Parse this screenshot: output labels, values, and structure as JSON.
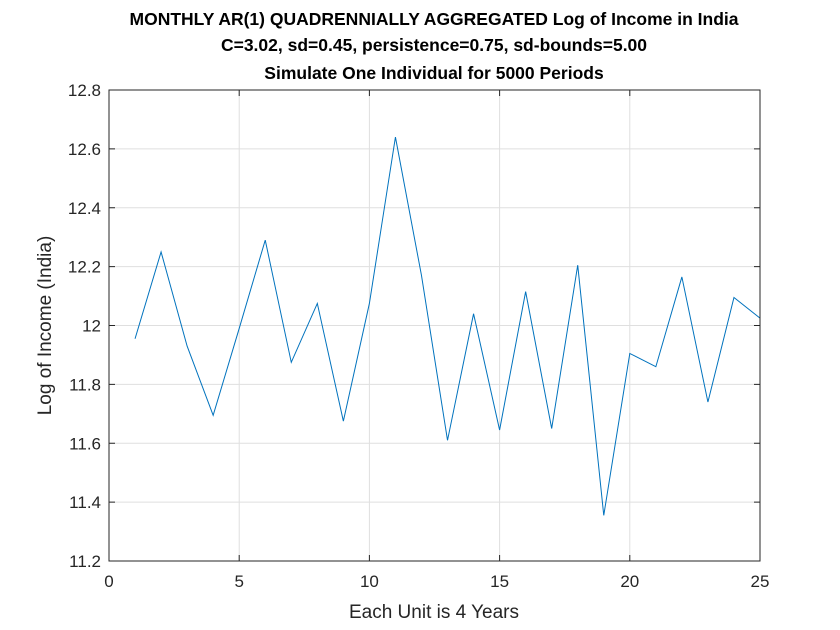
{
  "chart_data": {
    "type": "line",
    "title": [
      "MONTHLY AR(1) QUADRENNIALLY AGGREGATED Log of Income in India",
      "C=3.02, sd=0.45, persistence=0.75, sd-bounds=5.00",
      "Simulate One Individual for 5000 Periods"
    ],
    "xlabel": "Each Unit is 4 Years",
    "ylabel": "Log of Income (India)",
    "xlim": [
      0,
      25
    ],
    "ylim": [
      11.2,
      12.8
    ],
    "xticks": [
      0,
      5,
      10,
      15,
      20,
      25
    ],
    "xtick_labels": [
      "0",
      "5",
      "10",
      "15",
      "20",
      "25"
    ],
    "yticks": [
      11.2,
      11.4,
      11.6,
      11.8,
      12.0,
      12.2,
      12.4,
      12.6,
      12.8
    ],
    "ytick_labels": [
      "11.2",
      "11.4",
      "11.6",
      "11.8",
      "12",
      "12.2",
      "12.4",
      "12.6",
      "12.8"
    ],
    "grid": true,
    "legend": false,
    "line_color": "#0072BD",
    "series": [
      {
        "x": [
          1,
          2,
          3,
          4,
          5,
          6,
          7,
          8,
          9,
          10,
          11,
          12,
          13,
          14,
          15,
          16,
          17,
          18,
          19,
          20,
          21,
          22,
          23,
          24,
          25
        ],
        "y": [
          11.955,
          12.25,
          11.93,
          11.695,
          11.99,
          12.29,
          11.875,
          12.075,
          11.675,
          12.075,
          12.64,
          12.17,
          11.61,
          12.04,
          11.645,
          12.115,
          11.65,
          12.205,
          11.355,
          11.905,
          11.86,
          12.165,
          11.74,
          12.095,
          12.025
        ]
      }
    ]
  }
}
